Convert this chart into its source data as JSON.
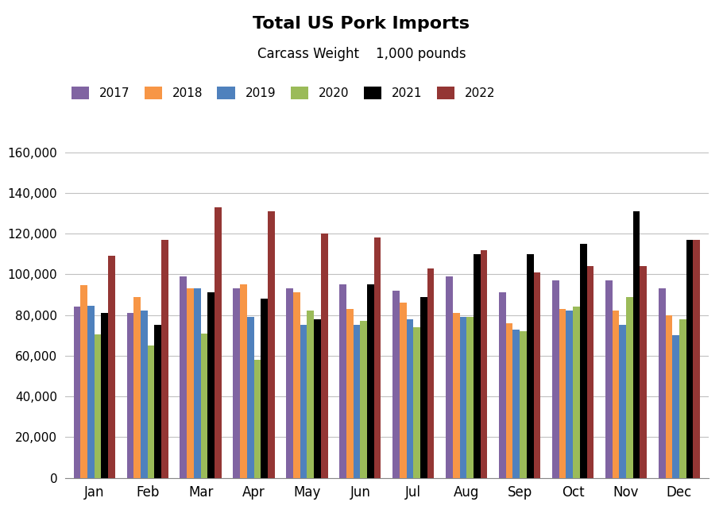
{
  "title": "Total US Pork Imports",
  "subtitle": "Carcass Weight    1,000 pounds",
  "months": [
    "Jan",
    "Feb",
    "Mar",
    "Apr",
    "May",
    "Jun",
    "Jul",
    "Aug",
    "Sep",
    "Oct",
    "Nov",
    "Dec"
  ],
  "series": {
    "2017": [
      84000,
      81000,
      99000,
      93000,
      93000,
      95000,
      92000,
      99000,
      91000,
      97000,
      97000,
      93000
    ],
    "2018": [
      94500,
      89000,
      93000,
      95000,
      91000,
      83000,
      86000,
      81000,
      76000,
      83000,
      82000,
      80000
    ],
    "2019": [
      84500,
      82000,
      93000,
      79000,
      75000,
      75000,
      78000,
      79000,
      73000,
      82000,
      75000,
      70000
    ],
    "2020": [
      70500,
      65000,
      71000,
      58000,
      82000,
      77000,
      74000,
      79000,
      72000,
      84000,
      89000,
      78000
    ],
    "2021": [
      81000,
      75000,
      91000,
      88000,
      78000,
      95000,
      89000,
      110000,
      110000,
      115000,
      131000,
      117000
    ],
    "2022": [
      109000,
      117000,
      133000,
      131000,
      120000,
      118000,
      103000,
      112000,
      101000,
      104000,
      104000,
      117000
    ]
  },
  "colors": {
    "2017": "#8064a2",
    "2018": "#f79646",
    "2019": "#4f81bd",
    "2020": "#9bbb59",
    "2021": "#000000",
    "2022": "#943634"
  },
  "ylim": [
    0,
    160000
  ],
  "ytick_step": 20000,
  "legend_labels": [
    "2017",
    "2018",
    "2019",
    "2020",
    "2021",
    "2022"
  ],
  "grid_color": "#c0c0c0",
  "bar_width": 0.13
}
